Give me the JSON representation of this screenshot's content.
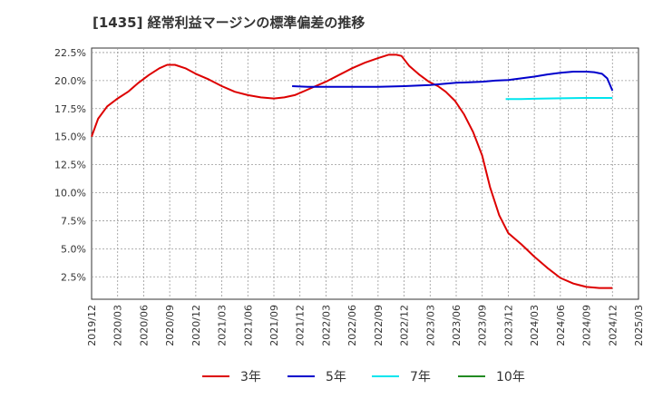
{
  "title": "[1435]  経常利益マージンの標準偏差の推移",
  "chart_data": {
    "type": "line",
    "title": "[1435]  経常利益マージンの標準偏差の推移",
    "xlabel": "",
    "ylabel": "",
    "x_tick_labels": [
      "2019/12",
      "2020/03",
      "2020/06",
      "2020/09",
      "2020/12",
      "2021/03",
      "2021/06",
      "2021/09",
      "2021/12",
      "2022/03",
      "2022/06",
      "2022/09",
      "2022/12",
      "2023/03",
      "2023/06",
      "2023/09",
      "2023/12",
      "2024/03",
      "2024/06",
      "2024/09",
      "2024/12",
      "2025/03"
    ],
    "y_ticks": [
      2.5,
      5.0,
      7.5,
      10.0,
      12.5,
      15.0,
      17.5,
      20.0,
      22.5
    ],
    "y_tick_labels": [
      "2.5%",
      "5.0%",
      "7.5%",
      "10.0%",
      "12.5%",
      "15.0%",
      "17.5%",
      "20.0%",
      "22.5%"
    ],
    "ylim": [
      0.5,
      22.9
    ],
    "xlim": [
      0,
      21
    ],
    "grid": true,
    "legend_position": "bottom",
    "series": [
      {
        "name": "3年",
        "color": "#dd0000",
        "points": [
          [
            0.0,
            15.0
          ],
          [
            0.25,
            16.6
          ],
          [
            0.6,
            17.7
          ],
          [
            1.0,
            18.4
          ],
          [
            1.4,
            19.0
          ],
          [
            1.8,
            19.8
          ],
          [
            2.2,
            20.5
          ],
          [
            2.6,
            21.1
          ],
          [
            2.9,
            21.4
          ],
          [
            3.2,
            21.4
          ],
          [
            3.6,
            21.1
          ],
          [
            4.0,
            20.6
          ],
          [
            4.5,
            20.1
          ],
          [
            5.0,
            19.5
          ],
          [
            5.5,
            19.0
          ],
          [
            6.0,
            18.7
          ],
          [
            6.5,
            18.5
          ],
          [
            7.0,
            18.4
          ],
          [
            7.4,
            18.5
          ],
          [
            7.8,
            18.7
          ],
          [
            8.2,
            19.1
          ],
          [
            8.6,
            19.5
          ],
          [
            9.0,
            19.9
          ],
          [
            9.5,
            20.5
          ],
          [
            10.0,
            21.1
          ],
          [
            10.5,
            21.6
          ],
          [
            11.0,
            22.0
          ],
          [
            11.4,
            22.3
          ],
          [
            11.7,
            22.3
          ],
          [
            11.9,
            22.2
          ],
          [
            12.2,
            21.3
          ],
          [
            12.6,
            20.5
          ],
          [
            12.95,
            19.9
          ],
          [
            13.3,
            19.5
          ],
          [
            13.6,
            19.0
          ],
          [
            13.95,
            18.2
          ],
          [
            14.3,
            17.0
          ],
          [
            14.65,
            15.4
          ],
          [
            15.0,
            13.3
          ],
          [
            15.3,
            10.5
          ],
          [
            15.65,
            8.0
          ],
          [
            16.0,
            6.4
          ],
          [
            16.5,
            5.4
          ],
          [
            17.0,
            4.3
          ],
          [
            17.5,
            3.3
          ],
          [
            18.0,
            2.4
          ],
          [
            18.5,
            1.9
          ],
          [
            19.0,
            1.6
          ],
          [
            19.5,
            1.5
          ],
          [
            20.0,
            1.5
          ]
        ]
      },
      {
        "name": "5年",
        "color": "#0000cc",
        "points": [
          [
            7.7,
            19.5
          ],
          [
            8.3,
            19.45
          ],
          [
            9.0,
            19.45
          ],
          [
            10.0,
            19.45
          ],
          [
            11.0,
            19.45
          ],
          [
            12.0,
            19.5
          ],
          [
            13.0,
            19.6
          ],
          [
            14.0,
            19.8
          ],
          [
            15.0,
            19.9
          ],
          [
            15.5,
            20.0
          ],
          [
            16.0,
            20.05
          ],
          [
            16.5,
            20.2
          ],
          [
            17.0,
            20.35
          ],
          [
            17.5,
            20.55
          ],
          [
            18.0,
            20.7
          ],
          [
            18.5,
            20.8
          ],
          [
            19.0,
            20.8
          ],
          [
            19.3,
            20.75
          ],
          [
            19.6,
            20.6
          ],
          [
            19.8,
            20.2
          ],
          [
            20.0,
            19.1
          ]
        ]
      },
      {
        "name": "7年",
        "color": "#00e5ee",
        "points": [
          [
            15.9,
            18.35
          ],
          [
            16.5,
            18.35
          ],
          [
            17.0,
            18.38
          ],
          [
            18.0,
            18.42
          ],
          [
            19.0,
            18.45
          ],
          [
            20.0,
            18.45
          ]
        ]
      },
      {
        "name": "10年",
        "color": "#228b22",
        "points": []
      }
    ]
  }
}
